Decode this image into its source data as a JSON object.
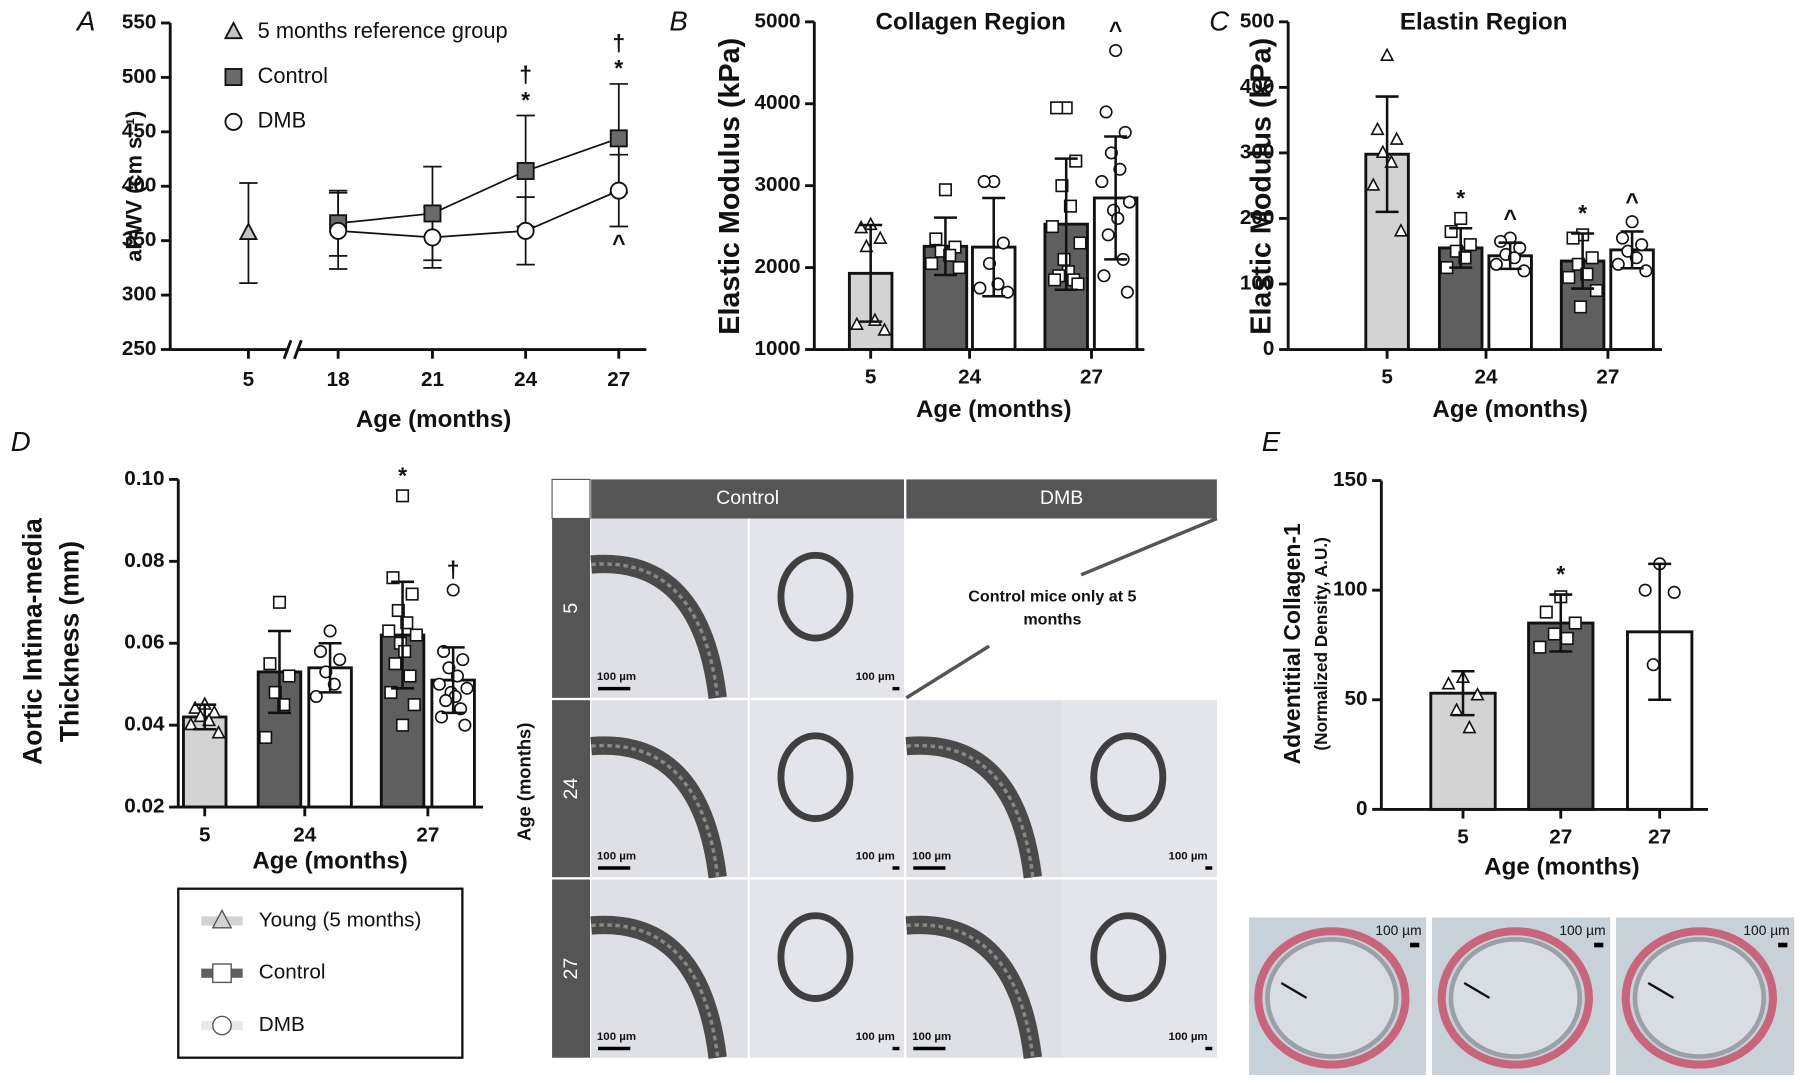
{
  "chart_data": [
    {
      "type": "line",
      "panel_label": "A",
      "ylabel": "aPWV (cm s⁻¹)",
      "xlabel": "Age (months)",
      "categories": [
        "5",
        "18",
        "21",
        "24",
        "27"
      ],
      "ylim": [
        250,
        550
      ],
      "yticks": [
        250,
        300,
        350,
        400,
        450,
        500,
        550
      ],
      "legend": "upper left",
      "series": [
        {
          "name": "5 months reference group",
          "color": "#c4c4c4",
          "marker": "triangle",
          "values": [
            357,
            null,
            null,
            null,
            null
          ],
          "errors": [
            46,
            null,
            null,
            null,
            null
          ]
        },
        {
          "name": "Control",
          "color": "#6a6a6a",
          "marker": "square",
          "values": [
            null,
            366,
            375,
            414,
            444
          ],
          "errors": [
            null,
            30,
            43,
            51,
            50
          ]
        },
        {
          "name": "DMB",
          "color": "#ffffff",
          "marker": "circle",
          "values": [
            null,
            359,
            353,
            359,
            396
          ],
          "errors": [
            null,
            35,
            28,
            31,
            33
          ]
        }
      ],
      "annotations": [
        {
          "text": "*",
          "category": 3,
          "series": 1,
          "side": "above"
        },
        {
          "text": "†",
          "category": 3,
          "series": 1,
          "side": "above"
        },
        {
          "text": "*",
          "category": 4,
          "series": 1,
          "side": "above"
        },
        {
          "text": "†",
          "category": 4,
          "series": 1,
          "side": "above"
        },
        {
          "text": "^",
          "category": 4,
          "series": 2,
          "side": "below"
        }
      ]
    },
    {
      "type": "bar",
      "panel_label": "B",
      "title": "Collagen Region",
      "ylabel": "Elastic Modulus (kPa)",
      "xlabel": "Age (months)",
      "categories": [
        "5",
        "24",
        "27"
      ],
      "ylim": [
        1000,
        5000
      ],
      "yticks": [
        1000,
        2000,
        3000,
        4000,
        5000
      ],
      "bars": [
        {
          "category": 0,
          "color": "#d3d3d3",
          "marker": "triangle",
          "value": 1930,
          "error": 590,
          "points": [
            2520,
            2480,
            2350,
            2250,
            1350,
            1300,
            1230
          ]
        },
        {
          "category": 1,
          "color": "#5f5f5f",
          "marker": "square",
          "value": 2260,
          "error": 350,
          "points": [
            2950,
            2350,
            2250,
            2200,
            2150,
            2050,
            2000
          ]
        },
        {
          "category": 1,
          "color": "#ffffff",
          "marker": "circle",
          "value": 2250,
          "error": 600,
          "points": [
            3050,
            3050,
            2300,
            2050,
            1800,
            1750,
            1700
          ]
        },
        {
          "category": 2,
          "color": "#5f5f5f",
          "marker": "square",
          "value": 2530,
          "error": 800,
          "points": [
            3950,
            3950,
            3300,
            3000,
            2750,
            2500,
            2300,
            2100,
            1950,
            1900,
            1850,
            1850,
            1800
          ]
        },
        {
          "category": 2,
          "color": "#ffffff",
          "marker": "circle",
          "value": 2850,
          "error": 750,
          "points": [
            4650,
            3900,
            3650,
            3400,
            3200,
            3050,
            2800,
            2700,
            2600,
            2400,
            2100,
            1900,
            1700
          ]
        }
      ],
      "annotations": [
        {
          "text": "^",
          "bar": 4
        }
      ]
    },
    {
      "type": "bar",
      "panel_label": "C",
      "title": "Elastin Region",
      "ylabel": "Elastic Modulus (kPa)",
      "xlabel": "Age (months)",
      "categories": [
        "5",
        "24",
        "27"
      ],
      "ylim": [
        0,
        500
      ],
      "yticks": [
        0,
        100,
        200,
        300,
        400,
        500
      ],
      "bars": [
        {
          "category": 0,
          "color": "#d3d3d3",
          "marker": "triangle",
          "value": 298,
          "error": 88,
          "points": [
            448,
            335,
            320,
            300,
            285,
            250,
            180
          ]
        },
        {
          "category": 1,
          "color": "#5f5f5f",
          "marker": "square",
          "value": 155,
          "error": 30,
          "points": [
            200,
            180,
            160,
            150,
            140,
            125
          ]
        },
        {
          "category": 1,
          "color": "#ffffff",
          "marker": "circle",
          "value": 143,
          "error": 20,
          "points": [
            170,
            165,
            155,
            145,
            140,
            130,
            120
          ]
        },
        {
          "category": 2,
          "color": "#5f5f5f",
          "marker": "square",
          "value": 135,
          "error": 42,
          "points": [
            175,
            170,
            140,
            130,
            115,
            110,
            90,
            65
          ]
        },
        {
          "category": 2,
          "color": "#ffffff",
          "marker": "circle",
          "value": 152,
          "error": 28,
          "points": [
            195,
            170,
            160,
            150,
            140,
            130,
            120
          ]
        }
      ],
      "annotations": [
        {
          "text": "*",
          "bar": 1
        },
        {
          "text": "^",
          "bar": 2
        },
        {
          "text": "*",
          "bar": 3
        },
        {
          "text": "^",
          "bar": 4
        }
      ]
    },
    {
      "type": "bar",
      "panel_label": "D",
      "ylabel": [
        "Aortic Intima-media",
        "Thickness (mm)"
      ],
      "xlabel": "Age (months)",
      "categories": [
        "5",
        "24",
        "27"
      ],
      "ylim": [
        0.02,
        0.1
      ],
      "yticks": [
        0.02,
        0.04,
        0.06,
        0.08,
        {
          "value": 0.1,
          "label": "0.10"
        }
      ],
      "legend": "below",
      "series": [
        {
          "name": "Young (5 months)",
          "color": "#d3d3d3",
          "marker": "triangle"
        },
        {
          "name": "Control",
          "color": "#5f5f5f",
          "marker": "square"
        },
        {
          "name": "DMB",
          "color": "#ffffff",
          "marker": "circle"
        }
      ],
      "bars": [
        {
          "category": 0,
          "series": 0,
          "value": 0.042,
          "error": 0.003,
          "points": [
            0.045,
            0.044,
            0.043,
            0.042,
            0.041,
            0.04,
            0.038
          ]
        },
        {
          "category": 1,
          "series": 1,
          "value": 0.053,
          "error": 0.01,
          "points": [
            0.07,
            0.055,
            0.052,
            0.048,
            0.045,
            0.037
          ]
        },
        {
          "category": 1,
          "series": 2,
          "value": 0.054,
          "error": 0.006,
          "points": [
            0.063,
            0.058,
            0.056,
            0.053,
            0.05,
            0.047
          ]
        },
        {
          "category": 2,
          "series": 1,
          "value": 0.062,
          "error": 0.013,
          "points": [
            0.096,
            0.076,
            0.072,
            0.068,
            0.065,
            0.063,
            0.062,
            0.06,
            0.058,
            0.055,
            0.052,
            0.048,
            0.045,
            0.04
          ]
        },
        {
          "category": 2,
          "series": 2,
          "value": 0.051,
          "error": 0.008,
          "points": [
            0.073,
            0.058,
            0.056,
            0.054,
            0.052,
            0.05,
            0.049,
            0.048,
            0.047,
            0.046,
            0.044,
            0.042,
            0.04
          ]
        }
      ],
      "annotations": [
        {
          "text": "*",
          "bar": 3
        },
        {
          "text": "†",
          "bar": 4
        }
      ]
    },
    {
      "type": "bar",
      "panel_label": "E",
      "ylabel": "Adventitial Collagen-1",
      "ylabel_note": "(Normalized Density, A.U.)",
      "xlabel": "Age (months)",
      "categories": [
        "5",
        "27",
        "27"
      ],
      "ylim": [
        0,
        150
      ],
      "yticks": [
        0,
        50,
        100,
        150
      ],
      "bars": [
        {
          "category": 0,
          "color": "#d3d3d3",
          "marker": "triangle",
          "value": 53,
          "error": 10,
          "points": [
            60,
            57,
            52,
            45,
            37
          ]
        },
        {
          "category": 1,
          "color": "#5f5f5f",
          "marker": "square",
          "value": 85,
          "error": 13,
          "points": [
            97,
            90,
            85,
            80,
            78,
            74
          ]
        },
        {
          "category": 2,
          "color": "#ffffff",
          "marker": "circle",
          "value": 81,
          "error": 31,
          "points": [
            112,
            100,
            99,
            66
          ]
        }
      ],
      "annotations": [
        {
          "text": "*",
          "bar": 1
        }
      ]
    }
  ],
  "micrographs": {
    "column_headers": [
      "Control",
      "DMB"
    ],
    "row_headers": [
      "5",
      "24",
      "27"
    ],
    "row_axis_label": "Age (months)",
    "note": "Control mice only at 5 months",
    "scale_bar": "100 µm"
  },
  "stain_images": {
    "scale_bar": "100 µm"
  }
}
